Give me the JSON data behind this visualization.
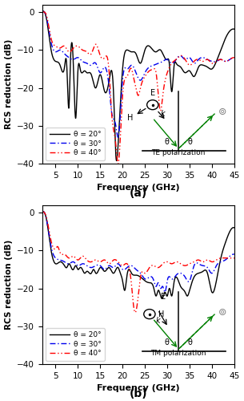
{
  "title_a": "(a)",
  "title_b": "(b)",
  "xlabel": "Frequency (GHz)",
  "ylabel": "RCS reduction (dB)",
  "xlim": [
    2,
    45
  ],
  "ylim": [
    -40,
    2
  ],
  "yticks": [
    0,
    -10,
    -20,
    -30,
    -40
  ],
  "xticks": [
    5,
    10,
    15,
    20,
    25,
    30,
    35,
    40,
    45
  ],
  "legend_labels": [
    "θ = 20°",
    "θ = 30°",
    "θ = 40°"
  ],
  "colors": [
    "black",
    "#0000ee",
    "red"
  ],
  "inset_label_a": "TE polarization",
  "inset_label_b": "TM polarization",
  "background": "white"
}
